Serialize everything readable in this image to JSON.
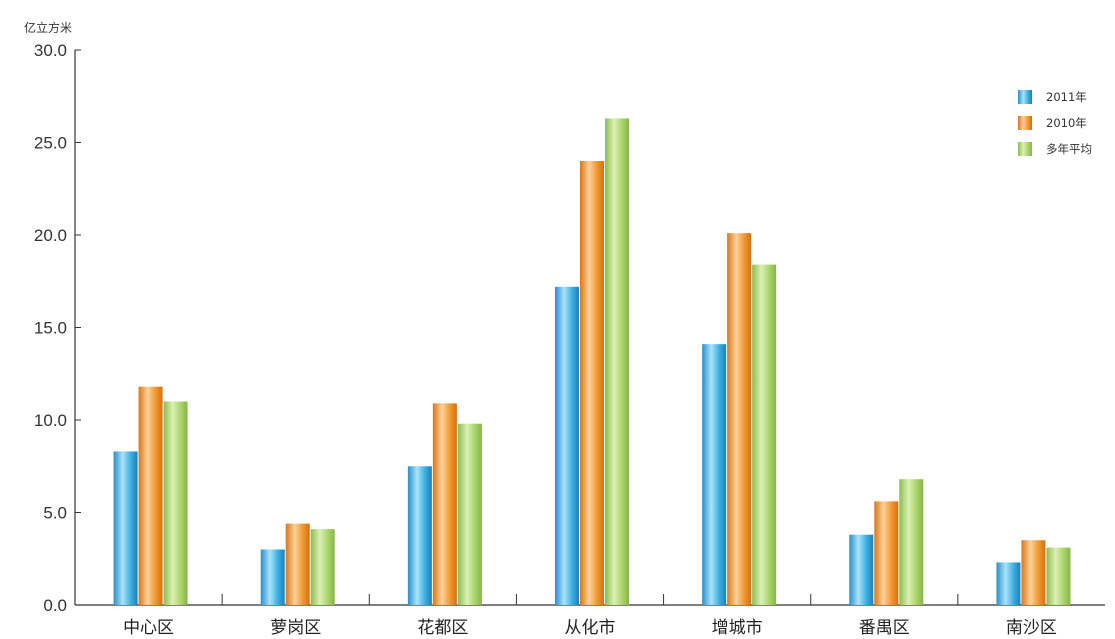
{
  "chart_data": {
    "type": "bar",
    "ylabel": "亿立方米",
    "ylim": [
      0,
      30
    ],
    "yticks": [
      "0.0",
      "5.0",
      "10.0",
      "15.0",
      "20.0",
      "25.0",
      "30.0"
    ],
    "categories": [
      "中心区",
      "萝岗区",
      "花都区",
      "从化市",
      "增城市",
      "番禺区",
      "南沙区"
    ],
    "series": [
      {
        "name": "2011年",
        "color": "#3aaee0",
        "values": [
          8.3,
          3.0,
          7.5,
          17.2,
          14.1,
          3.8,
          2.3
        ]
      },
      {
        "name": "2010年",
        "color": "#f0962e",
        "values": [
          11.8,
          4.4,
          10.9,
          24.0,
          20.1,
          5.6,
          3.5
        ]
      },
      {
        "name": "多年平均",
        "color": "#a8d46a",
        "values": [
          11.0,
          4.1,
          9.8,
          26.3,
          18.4,
          6.8,
          3.1
        ]
      }
    ],
    "legend_position": "top-right",
    "grid": false
  }
}
